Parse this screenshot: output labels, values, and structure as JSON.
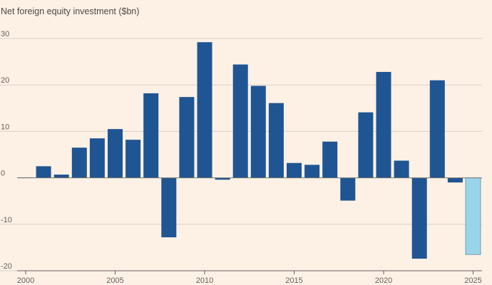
{
  "chart_data": {
    "type": "bar",
    "title": "Net foreign equity investment ($bn)",
    "xlabel": "",
    "ylabel": "",
    "ylim": [
      -20,
      30
    ],
    "yticks": [
      30,
      20,
      10,
      0,
      -10,
      -20
    ],
    "ytick_labels": [
      "30",
      "20",
      "10",
      "0",
      "-10",
      "-20"
    ],
    "xticks": [
      2000,
      2005,
      2010,
      2015,
      2020,
      2025
    ],
    "xtick_labels": [
      "2000",
      "2005",
      "2010",
      "2015",
      "2020",
      "2025"
    ],
    "grid": true,
    "categories": [
      2000,
      2001,
      2002,
      2003,
      2004,
      2005,
      2006,
      2007,
      2008,
      2009,
      2010,
      2011,
      2012,
      2013,
      2014,
      2015,
      2016,
      2017,
      2018,
      2019,
      2020,
      2021,
      2022,
      2023,
      2024,
      2025
    ],
    "values": [
      0.1,
      2.5,
      0.7,
      6.5,
      8.5,
      10.5,
      8.2,
      18.2,
      -12.8,
      17.4,
      29.2,
      -0.4,
      24.4,
      19.8,
      16.1,
      3.2,
      2.8,
      7.8,
      -4.9,
      14.1,
      22.8,
      3.7,
      -17.4,
      21.0,
      -1.0,
      -16.5
    ],
    "colors": {
      "bar": "#1f5592",
      "highlight": "#9ad4e8",
      "highlight_category": 2025,
      "grid": "#d9cfc6",
      "zero_line": "#7a7370"
    }
  }
}
